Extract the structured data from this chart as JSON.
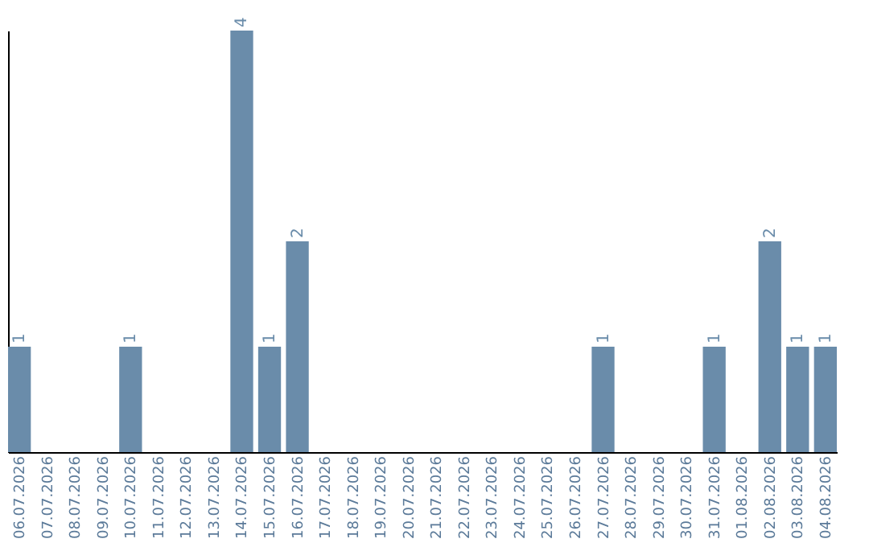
{
  "chart_data": {
    "type": "bar",
    "categories": [
      "06.07.2026",
      "07.07.2026",
      "08.07.2026",
      "09.07.2026",
      "10.07.2026",
      "11.07.2026",
      "12.07.2026",
      "13.07.2026",
      "14.07.2026",
      "15.07.2026",
      "16.07.2026",
      "17.07.2026",
      "18.07.2026",
      "19.07.2026",
      "20.07.2026",
      "21.07.2026",
      "22.07.2026",
      "23.07.2026",
      "24.07.2026",
      "25.07.2026",
      "26.07.2026",
      "27.07.2026",
      "28.07.2026",
      "29.07.2026",
      "30.07.2026",
      "31.07.2026",
      "01.08.2026",
      "02.08.2026",
      "03.08.2026",
      "04.08.2026"
    ],
    "values": [
      1,
      0,
      0,
      0,
      1,
      0,
      0,
      0,
      4,
      1,
      2,
      0,
      0,
      0,
      0,
      0,
      0,
      0,
      0,
      0,
      0,
      1,
      0,
      0,
      0,
      1,
      0,
      2,
      1,
      1
    ],
    "value_labels": [
      "1",
      null,
      null,
      null,
      "1",
      null,
      null,
      null,
      "4",
      "1",
      "2",
      null,
      null,
      null,
      null,
      null,
      null,
      null,
      null,
      null,
      null,
      "1",
      null,
      null,
      null,
      "1",
      null,
      "2",
      "1",
      "1"
    ],
    "color": "#6a8caa",
    "ylim": [
      0,
      4
    ],
    "tick_labels": "x",
    "grid": false
  }
}
